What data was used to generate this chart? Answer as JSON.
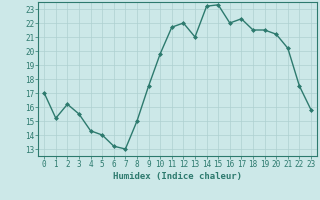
{
  "x": [
    0,
    1,
    2,
    3,
    4,
    5,
    6,
    7,
    8,
    9,
    10,
    11,
    12,
    13,
    14,
    15,
    16,
    17,
    18,
    19,
    20,
    21,
    22,
    23
  ],
  "y": [
    17,
    15.2,
    16.2,
    15.5,
    14.3,
    14.0,
    13.2,
    13.0,
    15.0,
    17.5,
    19.8,
    21.7,
    22.0,
    21.0,
    23.2,
    23.3,
    22.0,
    22.3,
    21.5,
    21.5,
    21.2,
    20.2,
    17.5,
    15.8
  ],
  "xlim": [
    -0.5,
    23.5
  ],
  "ylim": [
    12.5,
    23.5
  ],
  "yticks": [
    13,
    14,
    15,
    16,
    17,
    18,
    19,
    20,
    21,
    22,
    23
  ],
  "xticks": [
    0,
    1,
    2,
    3,
    4,
    5,
    6,
    7,
    8,
    9,
    10,
    11,
    12,
    13,
    14,
    15,
    16,
    17,
    18,
    19,
    20,
    21,
    22,
    23
  ],
  "xlabel": "Humidex (Indice chaleur)",
  "line_color": "#2d7a6e",
  "marker": "D",
  "marker_size": 2,
  "bg_color": "#cce8e8",
  "grid_color": "#aed0d0",
  "axis_color": "#2d7a6e",
  "tick_label_color": "#2d7a6e",
  "xlabel_color": "#2d7a6e",
  "xlabel_fontsize": 6.5,
  "tick_fontsize": 5.5,
  "linewidth": 1.0
}
